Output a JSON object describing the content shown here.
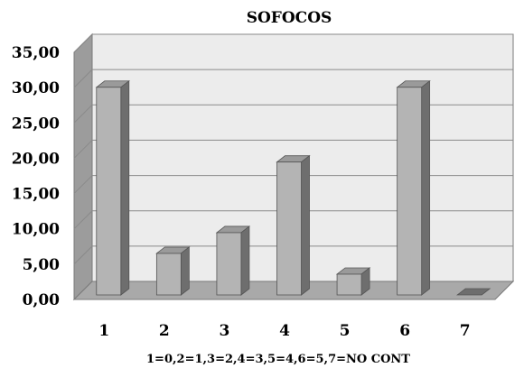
{
  "chart_data": {
    "type": "bar",
    "title": "SOFOCOS",
    "xlabel": "1=0,2=1,3=2,4=3,5=4,6=5,7=NO CONT",
    "ylabel": "",
    "categories": [
      "1",
      "2",
      "3",
      "4",
      "5",
      "6",
      "7"
    ],
    "values": [
      29.41,
      5.88,
      8.82,
      18.82,
      2.94,
      29.41,
      0.0
    ],
    "ylim": [
      0,
      35
    ],
    "ytick_step": 5,
    "ytick_labels": [
      "0,00",
      "5,00",
      "10,00",
      "15,00",
      "20,00",
      "25,00",
      "30,00",
      "35,00"
    ],
    "grid": true,
    "legend": "none",
    "colors": {
      "bar_front": "#b4b4b4",
      "bar_side": "#6e6e6e",
      "bar_top": "#9a9a9a",
      "back_wall": "#ececec",
      "side_wall": "#9c9c9c",
      "floor": "#a9a9a9",
      "gridline": "#8a8a8a"
    }
  }
}
